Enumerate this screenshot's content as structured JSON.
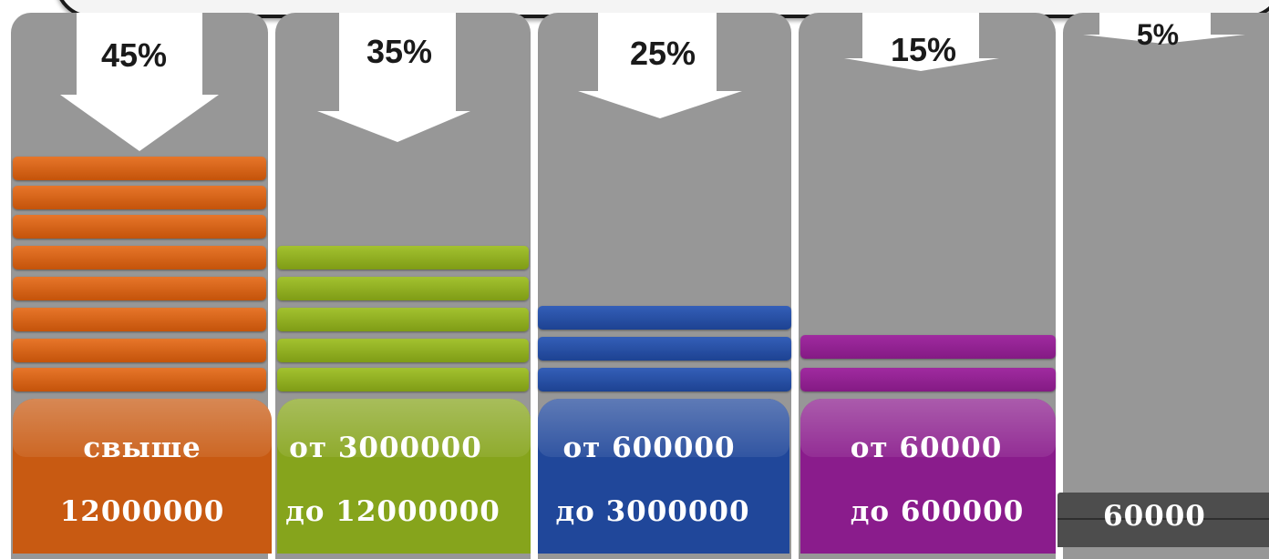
{
  "columns": [
    {
      "percent": "45%",
      "label_line1": "свыше",
      "label_line2": "12000000",
      "bar_count": 8,
      "color": "#d4600f",
      "label_color": "#c85a12"
    },
    {
      "percent": "35%",
      "label_line1": "от 3000000",
      "label_line2": "до 12000000",
      "bar_count": 5,
      "color": "#8dac1e",
      "label_color": "#86a41c"
    },
    {
      "percent": "25%",
      "label_line1": "от 600000",
      "label_line2": "до 3000000",
      "bar_count": 3,
      "color": "#244ea2",
      "label_color": "#20479a"
    },
    {
      "percent": "15%",
      "label_line1": "от 60000",
      "label_line2": "до 600000",
      "bar_count": 2,
      "color": "#8e1e8e",
      "label_color": "#8a1c8c"
    },
    {
      "percent": "5%",
      "label_line1": "",
      "label_line2": "60000",
      "bar_count": 0,
      "color": "#555555",
      "label_color": "#4d4d4d"
    }
  ]
}
